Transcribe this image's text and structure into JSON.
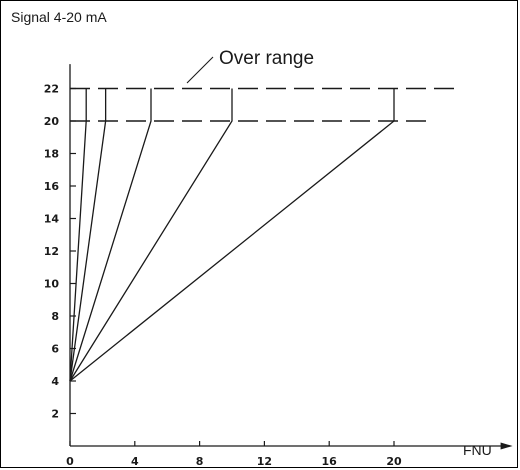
{
  "chart_data": {
    "type": "line",
    "ylabel": "Signal 4-20 mA",
    "xlabel": "FNU",
    "annotation": "Over range",
    "x_ticks": [
      0,
      4,
      8,
      12,
      16,
      20
    ],
    "y_ticks": [
      2,
      4,
      6,
      8,
      10,
      12,
      14,
      16,
      18,
      20,
      22
    ],
    "xlim": [
      0,
      23
    ],
    "ylim": [
      0,
      23.5
    ],
    "series": [
      {
        "points": [
          [
            0,
            4
          ],
          [
            1,
            20
          ],
          [
            1,
            22
          ]
        ]
      },
      {
        "points": [
          [
            0,
            4
          ],
          [
            2.2,
            20
          ],
          [
            2.2,
            22
          ]
        ]
      },
      {
        "points": [
          [
            0,
            4
          ],
          [
            5,
            20
          ],
          [
            5,
            22
          ]
        ]
      },
      {
        "points": [
          [
            0,
            4
          ],
          [
            10,
            20
          ],
          [
            10,
            22
          ]
        ]
      },
      {
        "points": [
          [
            0,
            4
          ],
          [
            20,
            20
          ],
          [
            20,
            22
          ]
        ]
      }
    ],
    "reference_lines": [
      {
        "y": 22,
        "style": "dashed"
      },
      {
        "y": 20,
        "style": "dashed"
      }
    ],
    "line_color": "#1a1a1a"
  }
}
